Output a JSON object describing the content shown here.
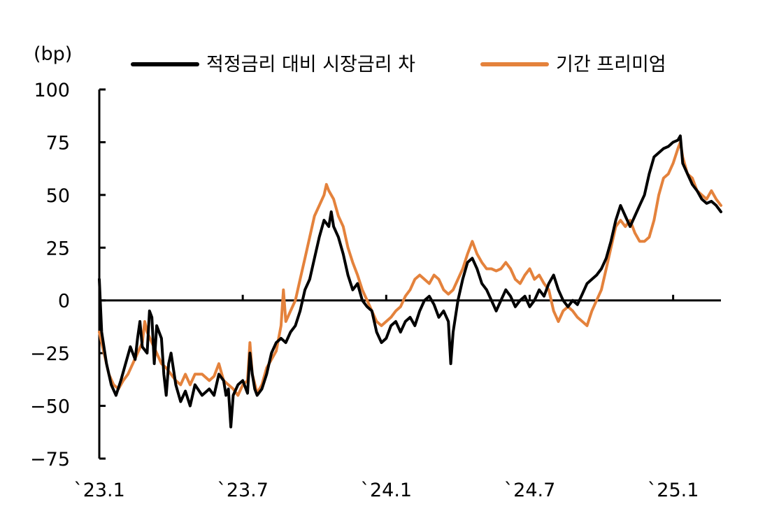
{
  "chart_data": {
    "type": "line",
    "unit_label": "(bp)",
    "ylim": [
      -75,
      100
    ],
    "y_ticks": [
      100,
      75,
      50,
      25,
      0,
      -25,
      -50,
      -75
    ],
    "y_tick_labels": [
      "100",
      "75",
      "50",
      "25",
      "0",
      "−25",
      "−50",
      "−75"
    ],
    "x_tick_labels": [
      "`23.1",
      "`23.7",
      "`24.1",
      "`24.7",
      "`25.1"
    ],
    "x_range_months": [
      0,
      26
    ],
    "x_tick_months": [
      0,
      6,
      12,
      18,
      24
    ],
    "grid": false,
    "legend_position": "top",
    "series": [
      {
        "name": "적정금리 대비 시장금리 차",
        "color": "#000000",
        "points": [
          [
            0,
            10
          ],
          [
            0.1,
            -15
          ],
          [
            0.3,
            -30
          ],
          [
            0.5,
            -40
          ],
          [
            0.7,
            -45
          ],
          [
            0.9,
            -38
          ],
          [
            1.1,
            -30
          ],
          [
            1.3,
            -22
          ],
          [
            1.5,
            -28
          ],
          [
            1.6,
            -18
          ],
          [
            1.7,
            -10
          ],
          [
            1.8,
            -22
          ],
          [
            2.0,
            -25
          ],
          [
            2.1,
            -5
          ],
          [
            2.2,
            -8
          ],
          [
            2.3,
            -30
          ],
          [
            2.4,
            -12
          ],
          [
            2.5,
            -15
          ],
          [
            2.6,
            -18
          ],
          [
            2.7,
            -35
          ],
          [
            2.8,
            -45
          ],
          [
            2.9,
            -30
          ],
          [
            3.0,
            -25
          ],
          [
            3.2,
            -40
          ],
          [
            3.4,
            -48
          ],
          [
            3.6,
            -43
          ],
          [
            3.8,
            -50
          ],
          [
            4.0,
            -40
          ],
          [
            4.3,
            -45
          ],
          [
            4.6,
            -42
          ],
          [
            4.8,
            -45
          ],
          [
            5.0,
            -35
          ],
          [
            5.2,
            -38
          ],
          [
            5.3,
            -45
          ],
          [
            5.4,
            -42
          ],
          [
            5.5,
            -60
          ],
          [
            5.6,
            -45
          ],
          [
            5.8,
            -40
          ],
          [
            6.0,
            -38
          ],
          [
            6.2,
            -44
          ],
          [
            6.3,
            -25
          ],
          [
            6.4,
            -35
          ],
          [
            6.5,
            -42
          ],
          [
            6.6,
            -45
          ],
          [
            6.8,
            -42
          ],
          [
            7.0,
            -35
          ],
          [
            7.2,
            -25
          ],
          [
            7.4,
            -20
          ],
          [
            7.6,
            -18
          ],
          [
            7.8,
            -20
          ],
          [
            8.0,
            -15
          ],
          [
            8.2,
            -12
          ],
          [
            8.4,
            -5
          ],
          [
            8.6,
            5
          ],
          [
            8.8,
            10
          ],
          [
            9.0,
            20
          ],
          [
            9.2,
            30
          ],
          [
            9.4,
            38
          ],
          [
            9.6,
            35
          ],
          [
            9.7,
            42
          ],
          [
            9.8,
            35
          ],
          [
            10.0,
            30
          ],
          [
            10.2,
            22
          ],
          [
            10.4,
            12
          ],
          [
            10.6,
            5
          ],
          [
            10.8,
            8
          ],
          [
            11.0,
            0
          ],
          [
            11.2,
            -3
          ],
          [
            11.4,
            -5
          ],
          [
            11.6,
            -15
          ],
          [
            11.8,
            -20
          ],
          [
            12.0,
            -18
          ],
          [
            12.2,
            -12
          ],
          [
            12.4,
            -10
          ],
          [
            12.6,
            -15
          ],
          [
            12.8,
            -10
          ],
          [
            13.0,
            -8
          ],
          [
            13.2,
            -12
          ],
          [
            13.4,
            -5
          ],
          [
            13.6,
            0
          ],
          [
            13.8,
            2
          ],
          [
            14.0,
            -2
          ],
          [
            14.2,
            -8
          ],
          [
            14.4,
            -5
          ],
          [
            14.6,
            -10
          ],
          [
            14.7,
            -30
          ],
          [
            14.8,
            -15
          ],
          [
            15.0,
            0
          ],
          [
            15.2,
            10
          ],
          [
            15.4,
            18
          ],
          [
            15.6,
            20
          ],
          [
            15.8,
            15
          ],
          [
            16.0,
            8
          ],
          [
            16.2,
            5
          ],
          [
            16.4,
            0
          ],
          [
            16.6,
            -5
          ],
          [
            16.8,
            0
          ],
          [
            17.0,
            5
          ],
          [
            17.2,
            2
          ],
          [
            17.4,
            -3
          ],
          [
            17.6,
            0
          ],
          [
            17.8,
            2
          ],
          [
            18.0,
            -3
          ],
          [
            18.2,
            0
          ],
          [
            18.4,
            5
          ],
          [
            18.6,
            2
          ],
          [
            18.8,
            8
          ],
          [
            19.0,
            12
          ],
          [
            19.2,
            5
          ],
          [
            19.4,
            0
          ],
          [
            19.6,
            -3
          ],
          [
            19.8,
            0
          ],
          [
            20.0,
            -2
          ],
          [
            20.2,
            3
          ],
          [
            20.4,
            8
          ],
          [
            20.6,
            10
          ],
          [
            20.8,
            12
          ],
          [
            21.0,
            15
          ],
          [
            21.2,
            20
          ],
          [
            21.4,
            28
          ],
          [
            21.6,
            38
          ],
          [
            21.8,
            45
          ],
          [
            22.0,
            40
          ],
          [
            22.2,
            35
          ],
          [
            22.4,
            40
          ],
          [
            22.6,
            45
          ],
          [
            22.8,
            50
          ],
          [
            23.0,
            60
          ],
          [
            23.2,
            68
          ],
          [
            23.4,
            70
          ],
          [
            23.6,
            72
          ],
          [
            23.8,
            73
          ],
          [
            24.0,
            75
          ],
          [
            24.2,
            76
          ],
          [
            24.3,
            78
          ],
          [
            24.4,
            65
          ],
          [
            24.6,
            60
          ],
          [
            24.8,
            55
          ],
          [
            25.0,
            52
          ],
          [
            25.2,
            48
          ],
          [
            25.4,
            46
          ],
          [
            25.6,
            47
          ],
          [
            25.8,
            45
          ],
          [
            26.0,
            42
          ]
        ]
      },
      {
        "name": "기간 프리미엄",
        "color": "#E4823C",
        "points": [
          [
            0,
            -15
          ],
          [
            0.2,
            -25
          ],
          [
            0.4,
            -35
          ],
          [
            0.6,
            -40
          ],
          [
            0.8,
            -42
          ],
          [
            1.0,
            -38
          ],
          [
            1.2,
            -35
          ],
          [
            1.4,
            -30
          ],
          [
            1.6,
            -25
          ],
          [
            1.8,
            -20
          ],
          [
            1.9,
            -10
          ],
          [
            2.0,
            -15
          ],
          [
            2.2,
            -20
          ],
          [
            2.4,
            -25
          ],
          [
            2.6,
            -30
          ],
          [
            2.8,
            -32
          ],
          [
            3.0,
            -35
          ],
          [
            3.2,
            -38
          ],
          [
            3.4,
            -40
          ],
          [
            3.6,
            -35
          ],
          [
            3.8,
            -40
          ],
          [
            4.0,
            -35
          ],
          [
            4.3,
            -35
          ],
          [
            4.6,
            -38
          ],
          [
            4.8,
            -36
          ],
          [
            5.0,
            -30
          ],
          [
            5.2,
            -38
          ],
          [
            5.4,
            -40
          ],
          [
            5.6,
            -42
          ],
          [
            5.8,
            -45
          ],
          [
            6.0,
            -40
          ],
          [
            6.2,
            -38
          ],
          [
            6.3,
            -20
          ],
          [
            6.4,
            -35
          ],
          [
            6.6,
            -44
          ],
          [
            6.8,
            -40
          ],
          [
            7.0,
            -32
          ],
          [
            7.2,
            -28
          ],
          [
            7.4,
            -24
          ],
          [
            7.6,
            -12
          ],
          [
            7.7,
            5
          ],
          [
            7.8,
            -10
          ],
          [
            8.0,
            -5
          ],
          [
            8.2,
            0
          ],
          [
            8.4,
            10
          ],
          [
            8.6,
            20
          ],
          [
            8.8,
            30
          ],
          [
            9.0,
            40
          ],
          [
            9.2,
            45
          ],
          [
            9.4,
            50
          ],
          [
            9.5,
            55
          ],
          [
            9.6,
            52
          ],
          [
            9.8,
            48
          ],
          [
            10.0,
            40
          ],
          [
            10.2,
            35
          ],
          [
            10.4,
            25
          ],
          [
            10.6,
            18
          ],
          [
            10.8,
            12
          ],
          [
            11.0,
            5
          ],
          [
            11.2,
            0
          ],
          [
            11.4,
            -5
          ],
          [
            11.6,
            -10
          ],
          [
            11.8,
            -12
          ],
          [
            12.0,
            -10
          ],
          [
            12.2,
            -8
          ],
          [
            12.4,
            -5
          ],
          [
            12.6,
            -3
          ],
          [
            12.8,
            2
          ],
          [
            13.0,
            5
          ],
          [
            13.2,
            10
          ],
          [
            13.4,
            12
          ],
          [
            13.6,
            10
          ],
          [
            13.8,
            8
          ],
          [
            14.0,
            12
          ],
          [
            14.2,
            10
          ],
          [
            14.4,
            5
          ],
          [
            14.6,
            3
          ],
          [
            14.8,
            5
          ],
          [
            15.0,
            10
          ],
          [
            15.2,
            15
          ],
          [
            15.4,
            22
          ],
          [
            15.6,
            28
          ],
          [
            15.8,
            22
          ],
          [
            16.0,
            18
          ],
          [
            16.2,
            15
          ],
          [
            16.4,
            15
          ],
          [
            16.6,
            14
          ],
          [
            16.8,
            15
          ],
          [
            17.0,
            18
          ],
          [
            17.2,
            15
          ],
          [
            17.4,
            10
          ],
          [
            17.6,
            8
          ],
          [
            17.8,
            12
          ],
          [
            18.0,
            15
          ],
          [
            18.2,
            10
          ],
          [
            18.4,
            12
          ],
          [
            18.6,
            8
          ],
          [
            18.8,
            5
          ],
          [
            19.0,
            -5
          ],
          [
            19.2,
            -10
          ],
          [
            19.4,
            -5
          ],
          [
            19.6,
            -3
          ],
          [
            19.8,
            -5
          ],
          [
            20.0,
            -8
          ],
          [
            20.2,
            -10
          ],
          [
            20.4,
            -12
          ],
          [
            20.6,
            -5
          ],
          [
            20.8,
            0
          ],
          [
            21.0,
            5
          ],
          [
            21.2,
            15
          ],
          [
            21.4,
            25
          ],
          [
            21.6,
            35
          ],
          [
            21.8,
            38
          ],
          [
            22.0,
            35
          ],
          [
            22.2,
            38
          ],
          [
            22.4,
            32
          ],
          [
            22.6,
            28
          ],
          [
            22.8,
            28
          ],
          [
            23.0,
            30
          ],
          [
            23.2,
            38
          ],
          [
            23.4,
            50
          ],
          [
            23.6,
            58
          ],
          [
            23.8,
            60
          ],
          [
            24.0,
            65
          ],
          [
            24.2,
            72
          ],
          [
            24.3,
            75
          ],
          [
            24.4,
            68
          ],
          [
            24.6,
            60
          ],
          [
            24.8,
            58
          ],
          [
            25.0,
            52
          ],
          [
            25.2,
            50
          ],
          [
            25.4,
            48
          ],
          [
            25.6,
            52
          ],
          [
            25.8,
            48
          ],
          [
            26.0,
            45
          ]
        ]
      }
    ]
  }
}
